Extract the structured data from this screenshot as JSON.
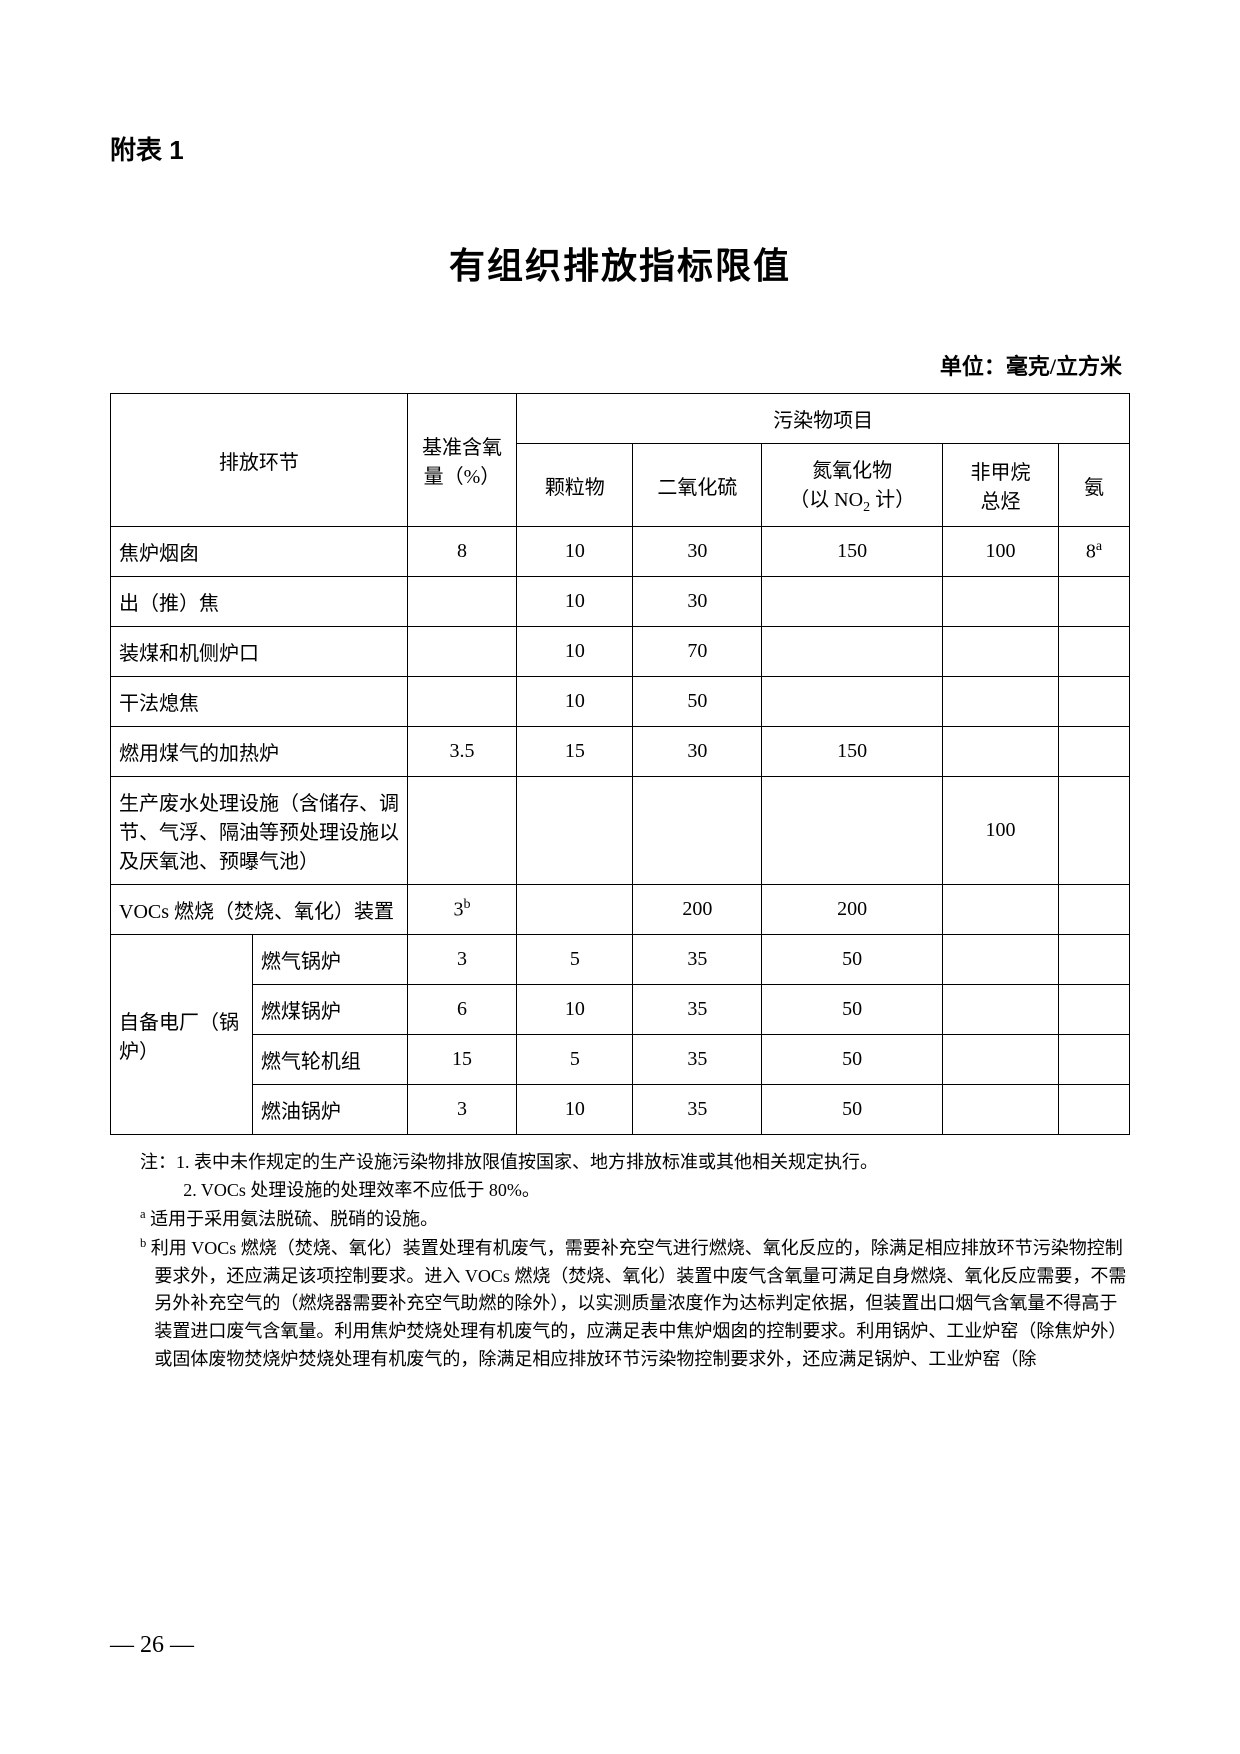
{
  "appendix_label": "附表 1",
  "title": "有组织排放指标限值",
  "unit": "单位：毫克/立方米",
  "headers": {
    "emission_link": "排放环节",
    "oxygen_header": "基准含氧量（%）",
    "pollutant_group": "污染物项目",
    "pm": "颗粒物",
    "so2": "二氧化硫",
    "nox_l1": "氮氧化物",
    "nox_l2": "（以 NO",
    "nox_l2_sub": "2",
    "nox_l2_tail": " 计）",
    "nmhc_l1": "非甲烷",
    "nmhc_l2": "总烃",
    "nh3": "氨"
  },
  "rows": {
    "r1": {
      "name": "焦炉烟囱",
      "oxygen": "8",
      "pm": "10",
      "so2": "30",
      "nox": "150",
      "nmhc": "100",
      "nh3_val": "8",
      "nh3_sup": "a"
    },
    "r2": {
      "name": "出（推）焦",
      "oxygen": "",
      "pm": "10",
      "so2": "30",
      "nox": "",
      "nmhc": "",
      "nh3": ""
    },
    "r3": {
      "name": "装煤和机侧炉口",
      "oxygen": "",
      "pm": "10",
      "so2": "70",
      "nox": "",
      "nmhc": "",
      "nh3": ""
    },
    "r4": {
      "name": "干法熄焦",
      "oxygen": "",
      "pm": "10",
      "so2": "50",
      "nox": "",
      "nmhc": "",
      "nh3": ""
    },
    "r5": {
      "name": "燃用煤气的加热炉",
      "oxygen": "3.5",
      "pm": "15",
      "so2": "30",
      "nox": "150",
      "nmhc": "",
      "nh3": ""
    },
    "r6": {
      "name": "生产废水处理设施（含储存、调节、气浮、隔油等预处理设施以及厌氧池、预曝气池）",
      "oxygen": "",
      "pm": "",
      "so2": "",
      "nox": "",
      "nmhc": "100",
      "nh3": ""
    },
    "r7": {
      "name": "VOCs 燃烧（焚烧、氧化）装置",
      "oxygen_val": "3",
      "oxygen_sup": "b",
      "pm": "",
      "so2": "200",
      "nox": "200",
      "nmhc": "",
      "nh3": ""
    },
    "r8": {
      "group": "自备电厂（锅炉）",
      "sub1": {
        "name": "燃气锅炉",
        "oxygen": "3",
        "pm": "5",
        "so2": "35",
        "nox": "50",
        "nmhc": "",
        "nh3": ""
      },
      "sub2": {
        "name": "燃煤锅炉",
        "oxygen": "6",
        "pm": "10",
        "so2": "35",
        "nox": "50",
        "nmhc": "",
        "nh3": ""
      },
      "sub3": {
        "name": "燃气轮机组",
        "oxygen": "15",
        "pm": "5",
        "so2": "35",
        "nox": "50",
        "nmhc": "",
        "nh3": ""
      },
      "sub4": {
        "name": "燃油锅炉",
        "oxygen": "3",
        "pm": "10",
        "so2": "35",
        "nox": "50",
        "nmhc": "",
        "nh3": ""
      }
    }
  },
  "notes": {
    "n1": "注：1. 表中未作规定的生产设施污染物排放限值按国家、地方排放标准或其他相关规定执行。",
    "n2": "2. VOCs 处理设施的处理效率不应低于 80%。",
    "na_sup": "a",
    "na": " 适用于采用氨法脱硫、脱硝的设施。",
    "nb_sup": "b",
    "nb": " 利用 VOCs 燃烧（焚烧、氧化）装置处理有机废气，需要补充空气进行燃烧、氧化反应的，除满足相应排放环节污染物控制要求外，还应满足该项控制要求。进入 VOCs 燃烧（焚烧、氧化）装置中废气含氧量可满足自身燃烧、氧化反应需要，不需另外补充空气的（燃烧器需要补充空气助燃的除外），以实测质量浓度作为达标判定依据，但装置出口烟气含氧量不得高于装置进口废气含氧量。利用焦炉焚烧处理有机废气的，应满足表中焦炉烟囱的控制要求。利用锅炉、工业炉窑（除焦炉外）或固体废物焚烧炉焚烧处理有机废气的，除满足相应排放环节污染物控制要求外，还应满足锅炉、工业炉窑（除"
  },
  "page_number": "—  26  —"
}
